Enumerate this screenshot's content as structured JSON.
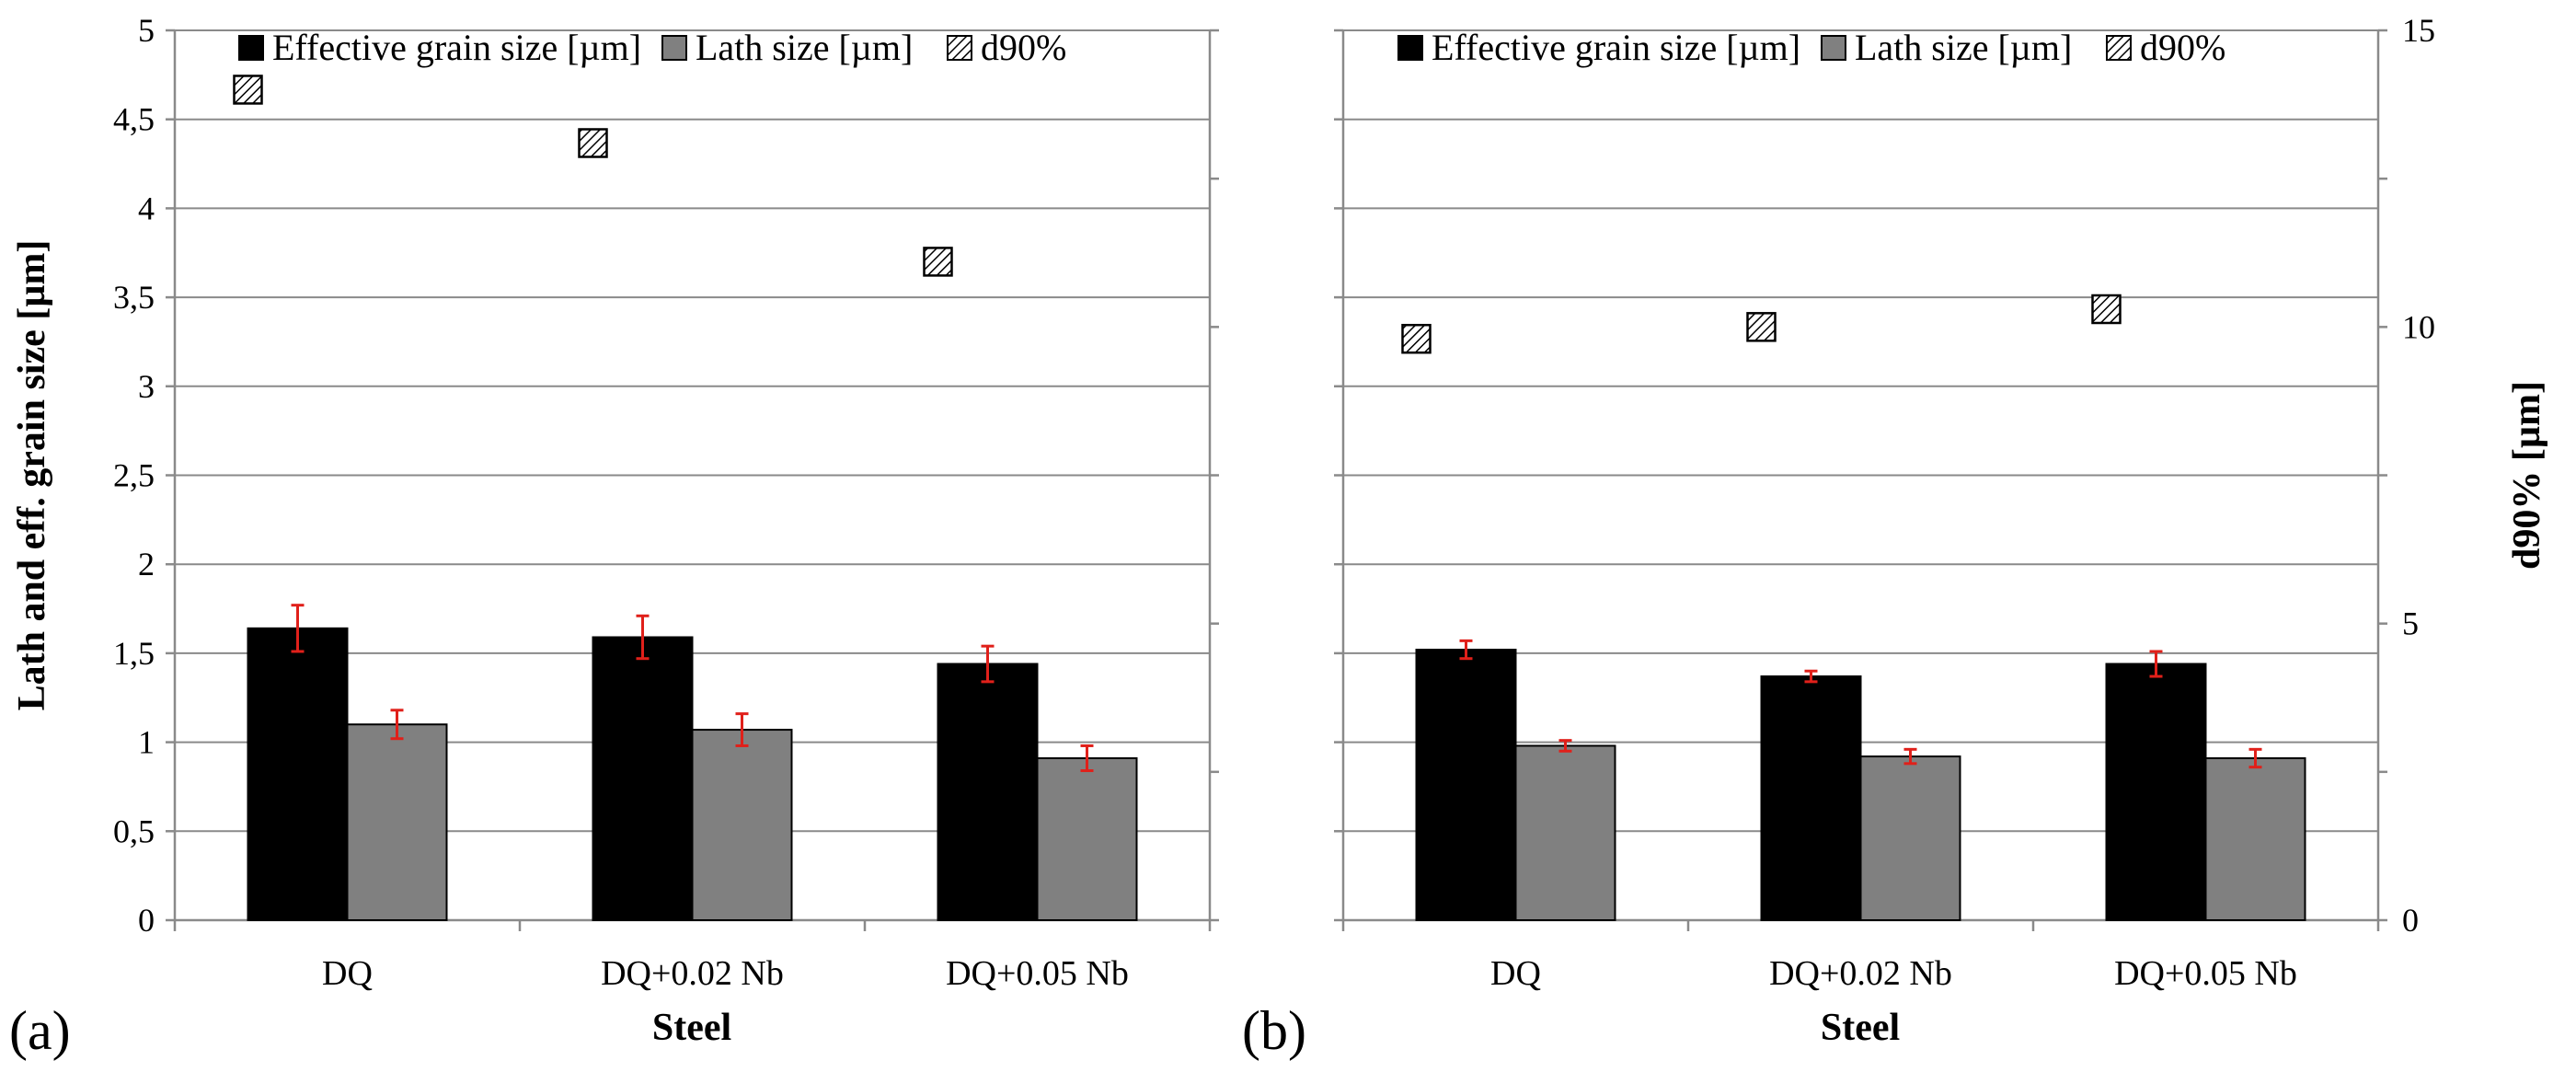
{
  "chart_data": [
    {
      "panel": "(a)",
      "type": "bar",
      "categories": [
        "DQ",
        "DQ+0.02 Nb",
        "DQ+0.05 Nb"
      ],
      "series": [
        {
          "name": "Effective grain size [µm]",
          "axis": "left",
          "values": [
            1.64,
            1.59,
            1.44
          ],
          "errors": [
            0.13,
            0.12,
            0.1
          ],
          "color": "#000000"
        },
        {
          "name": "Lath size [µm]",
          "axis": "left",
          "values": [
            1.1,
            1.07,
            0.91
          ],
          "errors": [
            0.08,
            0.09,
            0.07
          ],
          "color": "#808080"
        },
        {
          "name": "d90%",
          "axis": "right",
          "kind": "marker",
          "values": [
            14.0,
            13.1,
            11.1
          ]
        }
      ],
      "xlabel": "Steel",
      "ylabel": "Lath and eff. grain size [µm]",
      "ylim": [
        0,
        5
      ],
      "yticks": [
        "0",
        "0,5",
        "1",
        "1,5",
        "2",
        "2,5",
        "3",
        "3,5",
        "4",
        "4,5",
        "5"
      ],
      "y2lim": [
        0,
        15
      ],
      "y2ticks": [],
      "grid": true,
      "legend": "top"
    },
    {
      "panel": "(b)",
      "type": "bar",
      "categories": [
        "DQ",
        "DQ+0.02 Nb",
        "DQ+0.05 Nb"
      ],
      "series": [
        {
          "name": "Effective grain size [µm]",
          "axis": "left",
          "values": [
            1.52,
            1.37,
            1.44
          ],
          "errors": [
            0.05,
            0.03,
            0.07
          ],
          "color": "#000000"
        },
        {
          "name": "Lath size [µm]",
          "axis": "left",
          "values": [
            0.98,
            0.92,
            0.91
          ],
          "errors": [
            0.03,
            0.04,
            0.05
          ],
          "color": "#808080"
        },
        {
          "name": "d90%",
          "axis": "right",
          "kind": "marker",
          "values": [
            9.8,
            10.0,
            10.3
          ]
        }
      ],
      "xlabel": "Steel",
      "ylabel": "d90% [µm]",
      "ylim": [
        0,
        5
      ],
      "yticks": [],
      "y2lim": [
        0,
        15
      ],
      "y2ticks": [
        "0",
        "5",
        "10",
        "15"
      ],
      "grid": true,
      "legend": "top"
    }
  ]
}
